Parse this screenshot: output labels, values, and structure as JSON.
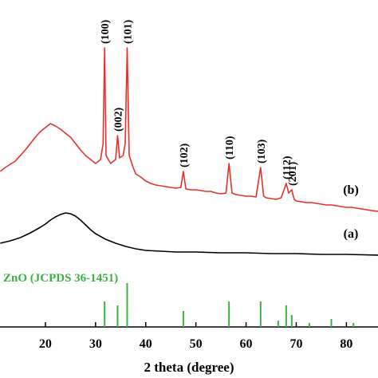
{
  "chart_data": {
    "type": "line",
    "x_label": "2 theta (degree)",
    "xlim": [
      10.95,
      86.3
    ],
    "ylim": [
      0,
      410
    ],
    "xticks": [
      20,
      30,
      40,
      50,
      60,
      70,
      80
    ],
    "series": [
      {
        "name": "(b)",
        "color": "#e8302a",
        "x": [
          11,
          12,
          13,
          14,
          15,
          16,
          17,
          18,
          19,
          20,
          21,
          22,
          23,
          24,
          25,
          26,
          27,
          28,
          29,
          30,
          31,
          31.5,
          31.8,
          32.1,
          33,
          34,
          34.4,
          34.8,
          35.5,
          35.9,
          36.3,
          36.7,
          37.5,
          38,
          39,
          40,
          41,
          42,
          43,
          44,
          45,
          46,
          47,
          47.5,
          48,
          49,
          50,
          51,
          52,
          53,
          54,
          55,
          56,
          56.6,
          57.2,
          58,
          59,
          60,
          61,
          62,
          62.9,
          63.5,
          64,
          65,
          66,
          67,
          68,
          68.5,
          69.1,
          69.6,
          70,
          71,
          72,
          73,
          74,
          75,
          76,
          77,
          78,
          79,
          80,
          81,
          82,
          83,
          84,
          85,
          86.4
        ],
        "values": [
          195,
          200,
          204,
          208,
          215,
          222,
          230,
          238,
          245,
          250,
          255,
          252,
          248,
          243,
          238,
          230,
          222,
          215,
          210,
          205,
          210,
          230,
          350,
          215,
          205,
          210,
          240,
          212,
          215,
          230,
          350,
          215,
          200,
          192,
          188,
          183,
          180,
          178,
          177,
          176,
          175,
          174,
          175,
          195,
          173,
          172,
          172,
          171,
          170,
          170,
          168,
          167,
          168,
          205,
          168,
          166,
          165,
          164,
          164,
          163,
          200,
          164,
          162,
          161,
          160,
          162,
          180,
          168,
          172,
          160,
          158,
          157,
          156,
          156,
          155,
          154,
          153,
          153,
          152,
          151,
          150,
          150,
          149,
          148,
          147,
          146,
          145
        ]
      },
      {
        "name": "(a)",
        "color": "#000000",
        "x": [
          11,
          13,
          15,
          17,
          19,
          20,
          21,
          22,
          23,
          24,
          25,
          26,
          27,
          28,
          29,
          30,
          32,
          34,
          36,
          38,
          40,
          43,
          46,
          50,
          55,
          60,
          65,
          70,
          75,
          80,
          86.4
        ],
        "values": [
          105,
          108,
          112,
          118,
          125,
          129,
          134,
          138,
          141,
          143,
          142,
          139,
          134,
          128,
          122,
          117,
          110,
          105,
          101,
          98,
          96,
          95,
          94,
          94,
          93,
          93,
          92,
          92,
          91,
          91,
          90
        ]
      }
    ],
    "reference": {
      "name": "ZnO (JCPDS 36-1451)",
      "color": "#3cb043",
      "x": [
        31.8,
        34.4,
        36.3,
        47.5,
        56.6,
        62.9,
        66.4,
        68,
        69.1,
        72.6,
        77,
        81.4
      ],
      "values": [
        32,
        27,
        55,
        20,
        32,
        32,
        8,
        27,
        15,
        5,
        10,
        5
      ]
    },
    "peak_labels": [
      {
        "text": "(100)",
        "x": 31.8
      },
      {
        "text": "(002)",
        "x": 34.4
      },
      {
        "text": "(101)",
        "x": 36.3
      },
      {
        "text": "(102)",
        "x": 47.5
      },
      {
        "text": "(110)",
        "x": 56.6
      },
      {
        "text": "(103)",
        "x": 62.9
      },
      {
        "text": "(112)",
        "x": 68
      },
      {
        "text": "(201)",
        "x": 69.1
      }
    ]
  }
}
